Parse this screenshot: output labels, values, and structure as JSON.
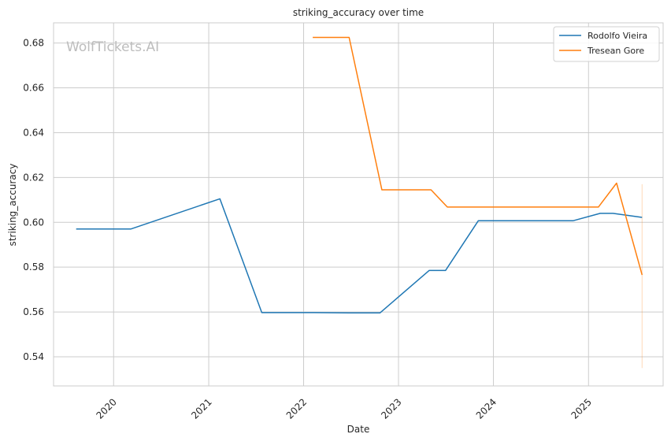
{
  "chart_data": {
    "type": "line",
    "title": "striking_accuracy over time",
    "xlabel": "Date",
    "ylabel": "striking_accuracy",
    "watermark": "WolfTickets.AI",
    "x_ticks": [
      "2020",
      "2021",
      "2022",
      "2023",
      "2024",
      "2025"
    ],
    "y_ticks": [
      "0.54",
      "0.56",
      "0.58",
      "0.60",
      "0.62",
      "0.64",
      "0.66",
      "0.68"
    ],
    "xlim": [
      "2019-05-15",
      "2025-10-15"
    ],
    "ylim": [
      0.527,
      0.689
    ],
    "grid": true,
    "legend_position": "top-right",
    "series": [
      {
        "name": "Rodolfo Vieira",
        "color": "#1f77b4",
        "points": [
          {
            "x": "2019-08-10",
            "y": 0.597
          },
          {
            "x": "2020-03-07",
            "y": 0.597
          },
          {
            "x": "2021-02-13",
            "y": 0.6105
          },
          {
            "x": "2021-07-24",
            "y": 0.5597
          },
          {
            "x": "2022-02-12",
            "y": 0.5597
          },
          {
            "x": "2022-06-25",
            "y": 0.5596
          },
          {
            "x": "2022-10-22",
            "y": 0.5596
          },
          {
            "x": "2023-04-29",
            "y": 0.5785
          },
          {
            "x": "2023-07-01",
            "y": 0.5785
          },
          {
            "x": "2023-11-04",
            "y": 0.6007
          },
          {
            "x": "2024-11-02",
            "y": 0.6007
          },
          {
            "x": "2025-02-15",
            "y": 0.604
          },
          {
            "x": "2025-04-05",
            "y": 0.604
          },
          {
            "x": "2025-07-26",
            "y": 0.6022
          }
        ]
      },
      {
        "name": "Tresean Gore",
        "color": "#ff7f0e",
        "points": [
          {
            "x": "2022-02-05",
            "y": 0.6825
          },
          {
            "x": "2022-06-25",
            "y": 0.6825
          },
          {
            "x": "2022-10-29",
            "y": 0.6145
          },
          {
            "x": "2023-05-06",
            "y": 0.6145
          },
          {
            "x": "2023-07-08",
            "y": 0.6068
          },
          {
            "x": "2025-02-08",
            "y": 0.6068
          },
          {
            "x": "2025-04-19",
            "y": 0.6175
          },
          {
            "x": "2025-07-26",
            "y": 0.5765
          }
        ],
        "error_band": {
          "x": "2025-07-26",
          "low": 0.535,
          "high": 0.617
        }
      }
    ]
  }
}
